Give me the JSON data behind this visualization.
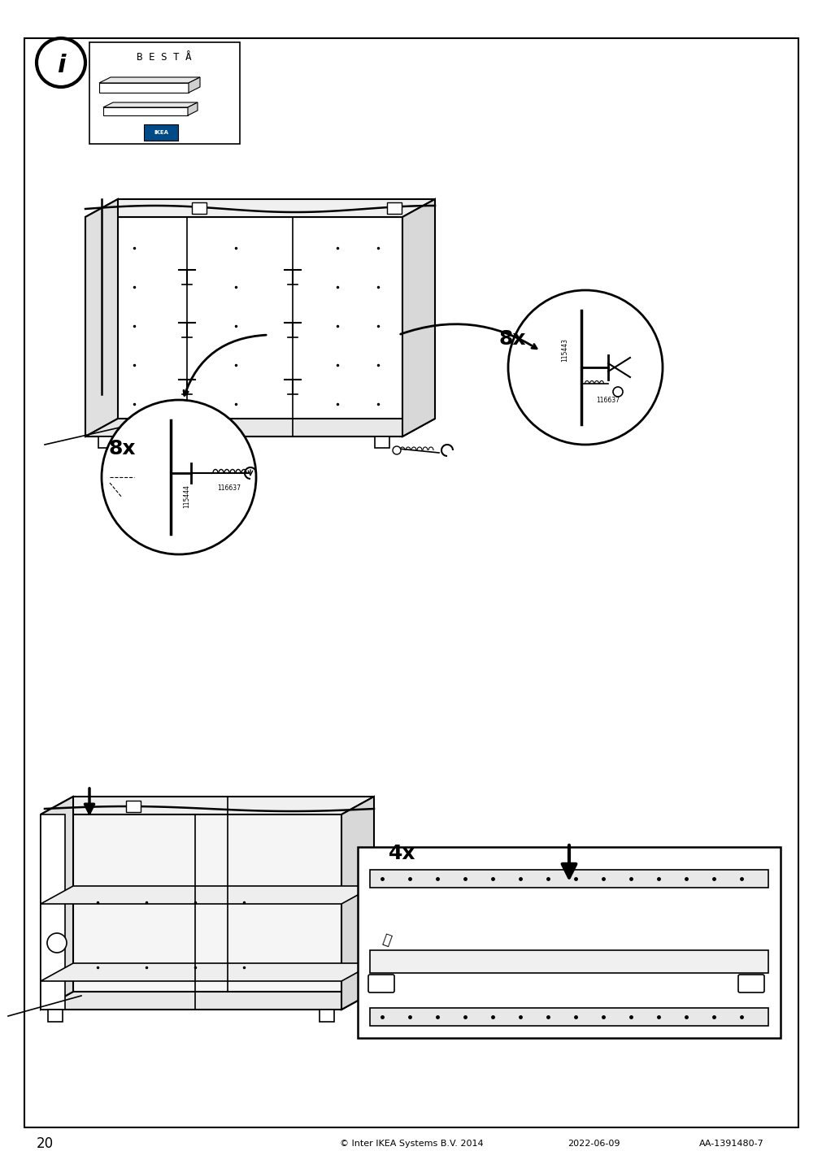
{
  "page_number": "20",
  "footer_text": "© Inter IKEA Systems B.V. 2014",
  "footer_date": "2022-06-09",
  "footer_code": "AA-1391480-7",
  "background_color": "#ffffff",
  "border_color": "#000000",
  "text_color": "#000000",
  "title": "B E S T Å",
  "count_1": "8x",
  "count_2": "8x",
  "count_3": "4x",
  "part_number_1": "115444",
  "part_number_2": "116637",
  "part_number_3": "115443",
  "part_number_4": "116637"
}
